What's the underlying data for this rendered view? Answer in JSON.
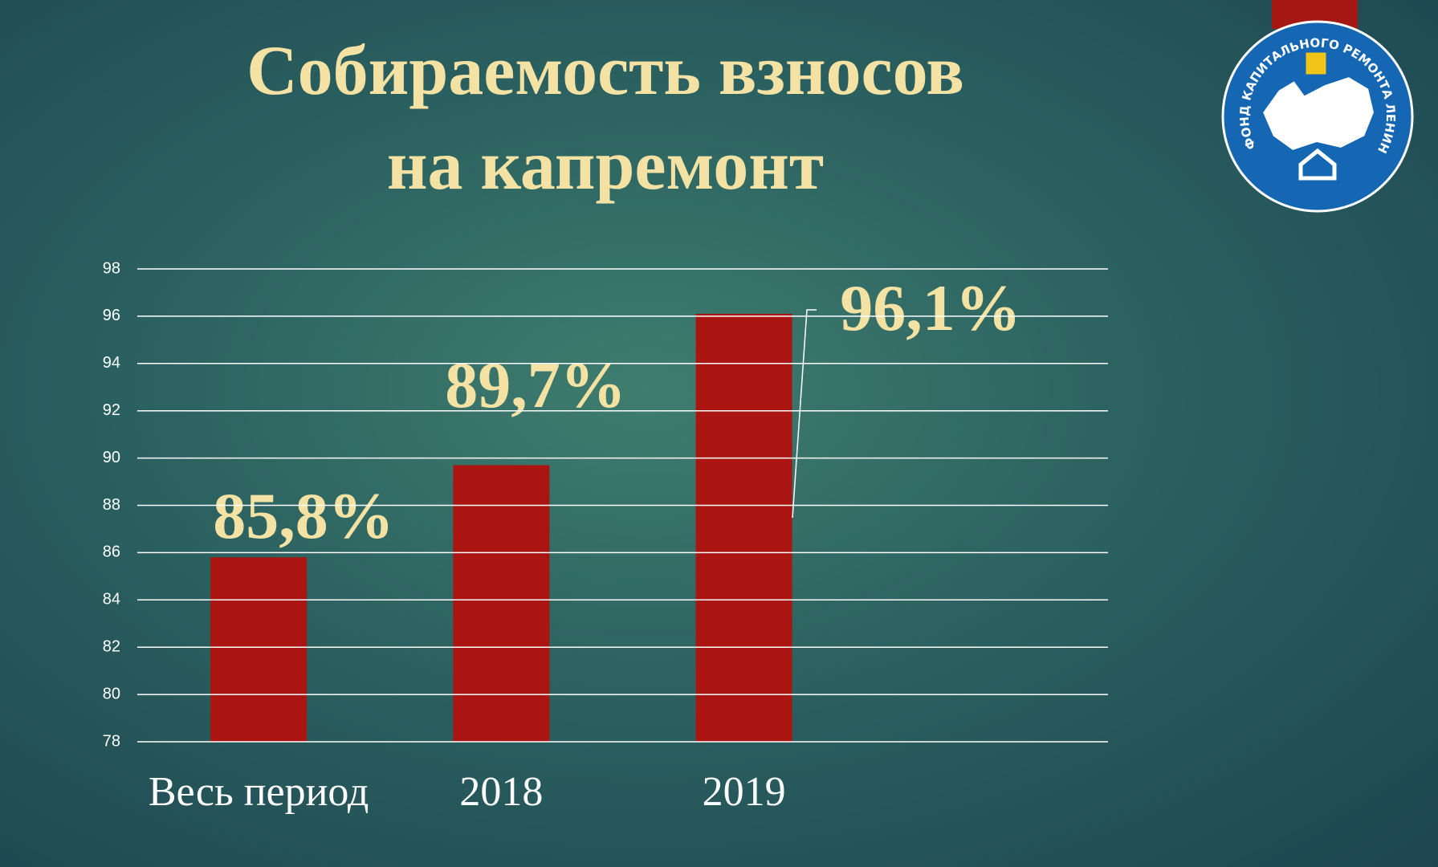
{
  "chart_data": {
    "type": "bar",
    "title": "Собираемость взносов на капремонт",
    "categories": [
      "Весь период",
      "2018",
      "2019"
    ],
    "values": [
      85.8,
      89.7,
      96.1
    ],
    "value_labels": [
      "85,8%",
      "89,7%",
      "96,1%"
    ],
    "color": "#aa1512",
    "ylim": [
      78,
      98
    ],
    "yticks": [
      78,
      80,
      82,
      84,
      86,
      88,
      90,
      92,
      94,
      96,
      98
    ],
    "grid": true
  },
  "logo": {
    "text": "ФОНД КАПИТАЛЬНОГО РЕМОНТА ЛЕНИНГРАДСКОЙ ОБЛАСТИ"
  }
}
